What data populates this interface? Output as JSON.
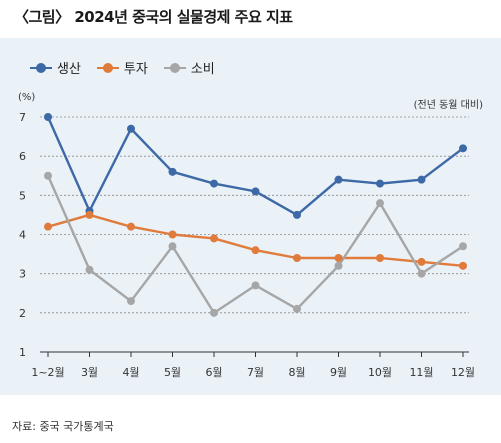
{
  "title": "〈그림〉 2024년 중국의 실물경제 주요 지표",
  "unit_label": "(%)",
  "note": "(전년 동월 대비)",
  "source": "자료: 중국 국가통계국",
  "colors": {
    "production": "#3d69a6",
    "investment": "#e07b3c",
    "consumption": "#a6a6a6"
  },
  "chart_data": {
    "type": "line",
    "categories": [
      "1~2월",
      "3월",
      "4월",
      "5월",
      "6월",
      "7월",
      "8월",
      "9월",
      "10월",
      "11월",
      "12월"
    ],
    "series": [
      {
        "name": "생산",
        "values": [
          7.0,
          4.6,
          6.7,
          5.6,
          5.3,
          5.1,
          4.5,
          5.4,
          5.3,
          5.4,
          6.2
        ]
      },
      {
        "name": "투자",
        "values": [
          4.2,
          4.5,
          4.2,
          4.0,
          3.9,
          3.6,
          3.4,
          3.4,
          3.4,
          3.3,
          3.2
        ]
      },
      {
        "name": "소비",
        "values": [
          5.5,
          3.1,
          2.3,
          3.7,
          2.0,
          2.7,
          2.1,
          3.2,
          4.8,
          3.0,
          3.7
        ]
      }
    ],
    "yticks": [
      1,
      2,
      3,
      4,
      5,
      6,
      7
    ],
    "ylim": [
      1,
      7
    ],
    "grid": true,
    "legend_position": "top-left"
  }
}
